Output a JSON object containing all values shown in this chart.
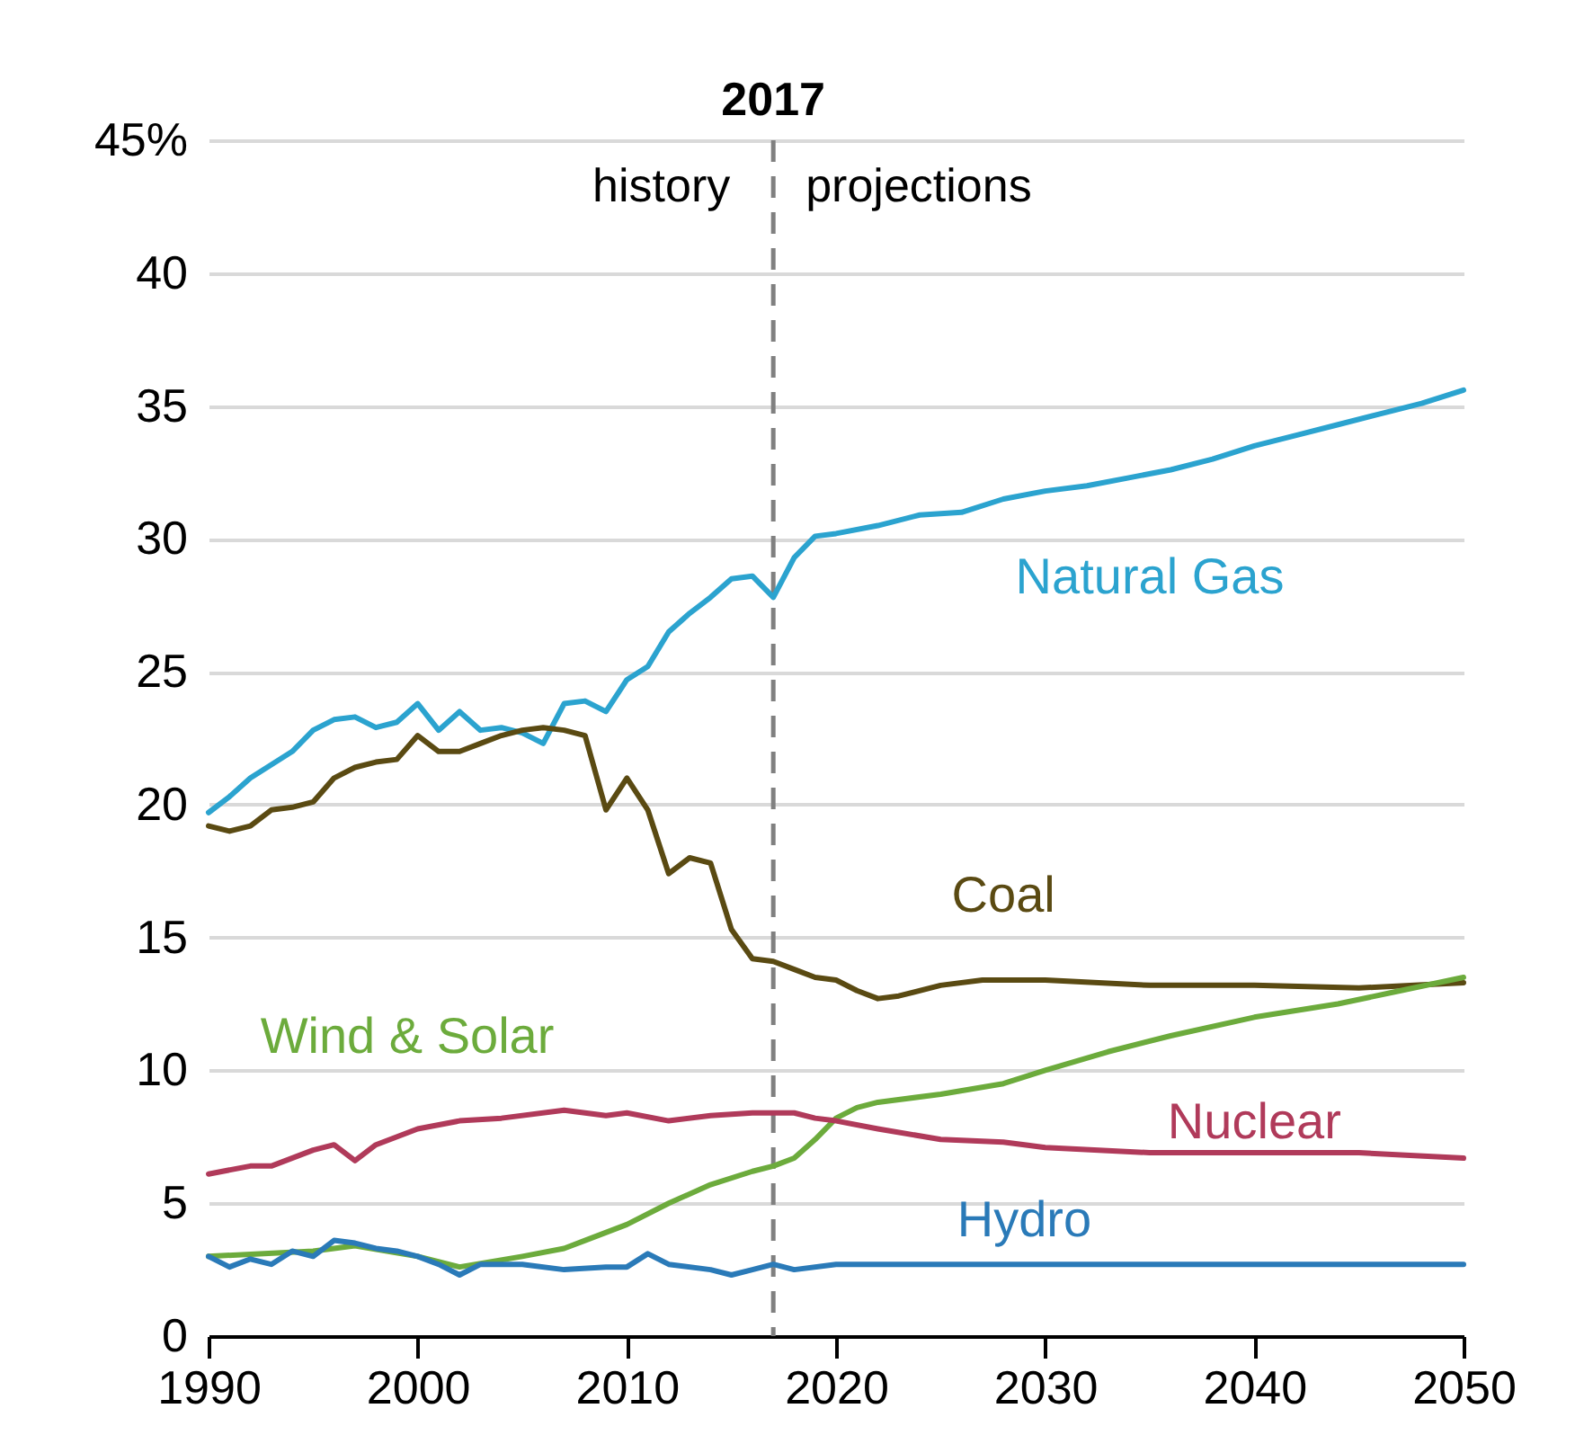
{
  "chart_data": {
    "type": "line",
    "annotations": [
      "history",
      "projections"
    ],
    "xlim": [
      1990,
      2050
    ],
    "xticks": [
      1990,
      2000,
      2010,
      2020,
      2030,
      2040,
      2050
    ],
    "ylim": [
      0,
      45
    ],
    "yticks": [
      0,
      5,
      10,
      15,
      20,
      25,
      30,
      35,
      40,
      {
        "value": 45,
        "label": "45%"
      }
    ],
    "grid": "y",
    "legend": false,
    "line_style": "solid",
    "marker": "none",
    "ref_lines": [
      {
        "axis": "x",
        "value": 2017,
        "label": "2017",
        "color": "#808080",
        "line_style": "dashed"
      }
    ],
    "series": [
      {
        "name": "Natural Gas",
        "color": "#2ba3cf",
        "x": [
          1990,
          1991,
          1992,
          1993,
          1994,
          1995,
          1996,
          1997,
          1998,
          1999,
          2000,
          2001,
          2002,
          2003,
          2004,
          2005,
          2006,
          2007,
          2008,
          2009,
          2010,
          2011,
          2012,
          2013,
          2014,
          2015,
          2016,
          2017,
          2018,
          2019,
          2020,
          2022,
          2024,
          2026,
          2028,
          2030,
          2032,
          2034,
          2036,
          2038,
          2040,
          2042,
          2044,
          2046,
          2048,
          2050
        ],
        "values": [
          19.7,
          20.3,
          21,
          21.5,
          22,
          22.8,
          23.2,
          23.3,
          22.9,
          23.1,
          23.8,
          22.8,
          23.5,
          22.8,
          22.9,
          22.7,
          22.3,
          23.8,
          23.9,
          23.5,
          24.7,
          25.2,
          26.5,
          27.2,
          27.8,
          28.5,
          28.6,
          27.8,
          29.3,
          30.1,
          30.2,
          30.5,
          30.9,
          31,
          31.5,
          31.8,
          32,
          32.3,
          32.6,
          33,
          33.5,
          33.9,
          34.3,
          34.7,
          35.1,
          35.6
        ]
      },
      {
        "name": "Coal",
        "color": "#5a4a12",
        "x": [
          1990,
          1991,
          1992,
          1993,
          1994,
          1995,
          1996,
          1997,
          1998,
          1999,
          2000,
          2001,
          2002,
          2003,
          2004,
          2005,
          2006,
          2007,
          2008,
          2009,
          2010,
          2011,
          2012,
          2013,
          2014,
          2015,
          2016,
          2017,
          2018,
          2019,
          2020,
          2021,
          2022,
          2023,
          2025,
          2027,
          2030,
          2035,
          2040,
          2045,
          2050
        ],
        "values": [
          19.2,
          19,
          19.2,
          19.8,
          19.9,
          20.1,
          21,
          21.4,
          21.6,
          21.7,
          22.6,
          22,
          22,
          22.3,
          22.6,
          22.8,
          22.9,
          22.8,
          22.6,
          19.8,
          21,
          19.8,
          17.4,
          18,
          17.8,
          15.3,
          14.2,
          14.1,
          13.8,
          13.5,
          13.4,
          13,
          12.7,
          12.8,
          13.2,
          13.4,
          13.4,
          13.2,
          13.2,
          13.1,
          13.3
        ]
      },
      {
        "name": "Wind & Solar",
        "color": "#6cab3c",
        "x": [
          1990,
          1995,
          1997,
          2000,
          2002,
          2005,
          2007,
          2008,
          2010,
          2012,
          2014,
          2016,
          2017,
          2018,
          2019,
          2020,
          2021,
          2022,
          2025,
          2028,
          2030,
          2033,
          2036,
          2040,
          2044,
          2047,
          2050
        ],
        "values": [
          3,
          3.2,
          3.4,
          3,
          2.6,
          3,
          3.3,
          3.6,
          4.2,
          5,
          5.7,
          6.2,
          6.4,
          6.7,
          7.4,
          8.2,
          8.6,
          8.8,
          9.1,
          9.5,
          10,
          10.7,
          11.3,
          12,
          12.5,
          13,
          13.5
        ]
      },
      {
        "name": "Nuclear",
        "color": "#b03a5a",
        "x": [
          1990,
          1992,
          1993,
          1995,
          1996,
          1997,
          1998,
          2000,
          2002,
          2004,
          2007,
          2009,
          2010,
          2012,
          2014,
          2016,
          2018,
          2019,
          2020,
          2022,
          2025,
          2028,
          2030,
          2035,
          2040,
          2045,
          2050
        ],
        "values": [
          6.1,
          6.4,
          6.4,
          7,
          7.2,
          6.6,
          7.2,
          7.8,
          8.1,
          8.2,
          8.5,
          8.3,
          8.4,
          8.1,
          8.3,
          8.4,
          8.4,
          8.2,
          8.1,
          7.8,
          7.4,
          7.3,
          7.1,
          6.9,
          6.9,
          6.9,
          6.7
        ]
      },
      {
        "name": "Hydro",
        "color": "#2a7ab8",
        "x": [
          1990,
          1991,
          1992,
          1993,
          1994,
          1995,
          1996,
          1997,
          1998,
          1999,
          2000,
          2001,
          2002,
          2003,
          2005,
          2007,
          2009,
          2010,
          2011,
          2012,
          2014,
          2015,
          2016,
          2017,
          2018,
          2020,
          2030,
          2040,
          2050
        ],
        "values": [
          3,
          2.6,
          2.9,
          2.7,
          3.2,
          3,
          3.6,
          3.5,
          3.3,
          3.2,
          3,
          2.7,
          2.3,
          2.7,
          2.7,
          2.5,
          2.6,
          2.6,
          3.1,
          2.7,
          2.5,
          2.3,
          2.5,
          2.7,
          2.5,
          2.7,
          2.7,
          2.7,
          2.7
        ]
      }
    ]
  }
}
